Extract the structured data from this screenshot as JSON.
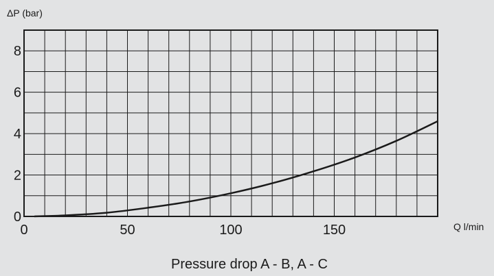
{
  "chart_data": {
    "type": "line",
    "ylabel": "ΔP (bar)",
    "xlabel": "Q l/min",
    "caption": "Pressure drop A - B, A - C",
    "xlim": [
      0,
      200
    ],
    "ylim": [
      0,
      9
    ],
    "x_ticks": [
      0,
      50,
      100,
      150
    ],
    "y_ticks": [
      0,
      2,
      4,
      6,
      8
    ],
    "x_grid_step": 10,
    "y_grid_step": 1,
    "grid": true,
    "series": [
      {
        "x": [
          5,
          20,
          40,
          60,
          80,
          100,
          120,
          140,
          160,
          180,
          200
        ],
        "values": [
          0,
          0.05,
          0.18,
          0.42,
          0.72,
          1.12,
          1.6,
          2.18,
          2.85,
          3.65,
          4.6
        ]
      }
    ]
  }
}
